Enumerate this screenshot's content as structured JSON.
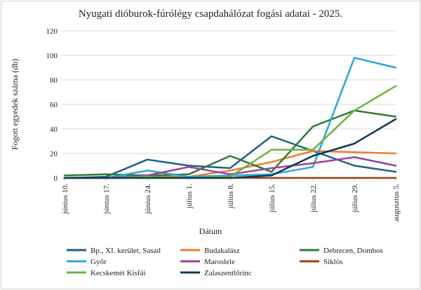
{
  "chart_data": {
    "type": "line",
    "title": "Nyugati dióburok-fúrólégy csapdahálózat fogási adatai - 2025.",
    "xlabel": "Dátum",
    "ylabel": "Fogott egyedek száma (db)",
    "ylim": [
      0,
      120
    ],
    "yticks": [
      0,
      20,
      40,
      60,
      80,
      100,
      120
    ],
    "grid": true,
    "legend_position": "bottom",
    "categories": [
      "június 10.",
      "június 17.",
      "június 24.",
      "július 1.",
      "július 8.",
      "július 15.",
      "július 22.",
      "július 29.",
      "augusztus 5."
    ],
    "series": [
      {
        "name": "Bp., XI. kerület, Sasad",
        "color": "#1f5f86",
        "values": [
          0,
          1,
          15,
          10,
          8,
          34,
          22,
          10,
          5
        ]
      },
      {
        "name": "Budakalász",
        "color": "#ed7d31",
        "values": [
          0,
          0,
          1,
          1,
          6,
          13,
          22,
          21,
          20
        ]
      },
      {
        "name": "Debrecen, Dombos",
        "color": "#2e7b32",
        "values": [
          2,
          3,
          2,
          3,
          18,
          5,
          42,
          55,
          50
        ]
      },
      {
        "name": "Győr",
        "color": "#2aa8d8",
        "values": [
          0,
          0,
          6,
          1,
          2,
          3,
          9,
          98,
          90
        ]
      },
      {
        "name": "Maroslele",
        "color": "#9c3f9e",
        "values": [
          0,
          0,
          2,
          9,
          3,
          8,
          12,
          17,
          10
        ]
      },
      {
        "name": "Siklós",
        "color": "#9c3e16",
        "values": [
          0,
          0,
          0,
          0,
          0,
          0,
          0,
          0,
          0
        ]
      },
      {
        "name": "Kecskemét Kisfái",
        "color": "#6ab43f",
        "values": [
          0,
          0,
          1,
          0,
          1,
          23,
          23,
          55,
          75
        ]
      },
      {
        "name": "Zalaszentlőrinc",
        "color": "#10394f",
        "values": [
          0,
          0,
          0,
          0,
          0,
          2,
          18,
          28,
          48
        ]
      }
    ]
  }
}
